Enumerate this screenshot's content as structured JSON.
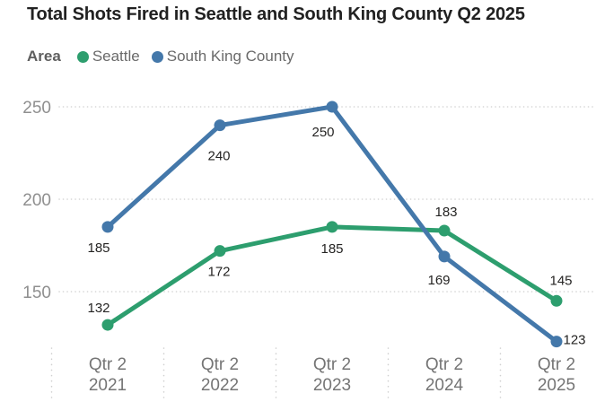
{
  "chart_data": {
    "type": "line",
    "title": "Total Shots Fired in Seattle and South King County Q2 2025",
    "legend_title": "Area",
    "legend_position": "top",
    "categories": [
      [
        "Qtr 2",
        "2021"
      ],
      [
        "Qtr 2",
        "2022"
      ],
      [
        "Qtr 2",
        "2023"
      ],
      [
        "Qtr 2",
        "2024"
      ],
      [
        "Qtr 2",
        "2025"
      ]
    ],
    "series": [
      {
        "name": "Seattle",
        "color": "#2d9e6e",
        "values": [
          132,
          172,
          185,
          183,
          145
        ],
        "label_offsets": [
          [
            -10,
            -14
          ],
          [
            -1,
            28
          ],
          [
            0,
            29
          ],
          [
            2,
            -16
          ],
          [
            5,
            -18
          ]
        ]
      },
      {
        "name": "South King County",
        "color": "#4478aa",
        "values": [
          185,
          240,
          250,
          169,
          123
        ],
        "label_offsets": [
          [
            -10,
            28
          ],
          [
            -1,
            39
          ],
          [
            -10,
            33
          ],
          [
            -6,
            31
          ],
          [
            20,
            3
          ]
        ]
      }
    ],
    "xlabel": "",
    "ylabel": "",
    "y_ticks": [
      250,
      200,
      150
    ],
    "ylim": [
      115,
      260
    ],
    "grid": "horizontal dotted",
    "data_labels": true
  },
  "colors": {
    "grid": "#d4d4d4",
    "separator": "#d0d0d0",
    "axis_text": "#8f8f8f",
    "x_axis_text": "#757575",
    "data_label": "#252423"
  }
}
